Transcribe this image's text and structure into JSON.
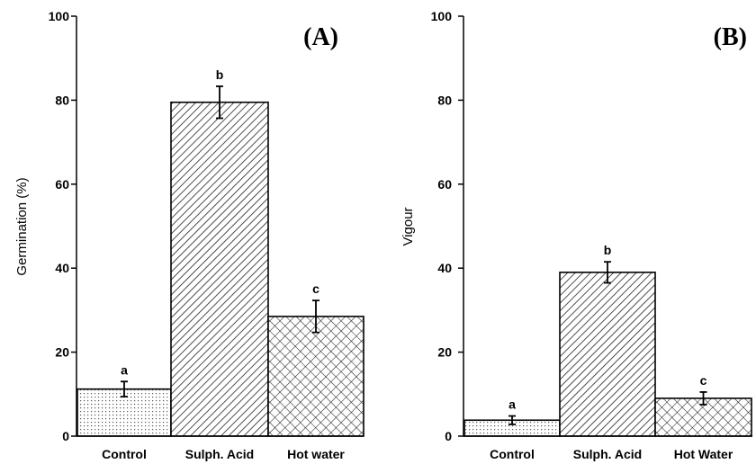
{
  "chart_data": [
    {
      "type": "bar",
      "panel_label": "(A)",
      "ylabel": "Germination (%)",
      "ylim": [
        0,
        100
      ],
      "yticks": [
        "0",
        "20",
        "40",
        "60",
        "80",
        "100"
      ],
      "categories": [
        "Control",
        "Sulph. Acid",
        "Hot water"
      ],
      "values": [
        11.2,
        79.5,
        28.5
      ],
      "errors": [
        1.8,
        3.8,
        3.8
      ],
      "significance_letters": [
        "a",
        "b",
        "c"
      ],
      "patterns": [
        "dots",
        "diagonal-hatch",
        "crosshatch"
      ]
    },
    {
      "type": "bar",
      "panel_label": "(B)",
      "ylabel": "Vigour",
      "ylim": [
        0,
        100
      ],
      "yticks": [
        "0",
        "20",
        "40",
        "60",
        "80",
        "100"
      ],
      "categories": [
        "Control",
        "Sulph. Acid",
        "Hot Water"
      ],
      "values": [
        3.8,
        39.0,
        9.0
      ],
      "errors": [
        1.0,
        2.5,
        1.5
      ],
      "significance_letters": [
        "a",
        "b",
        "c"
      ],
      "patterns": [
        "dots",
        "diagonal-hatch",
        "crosshatch"
      ]
    }
  ]
}
